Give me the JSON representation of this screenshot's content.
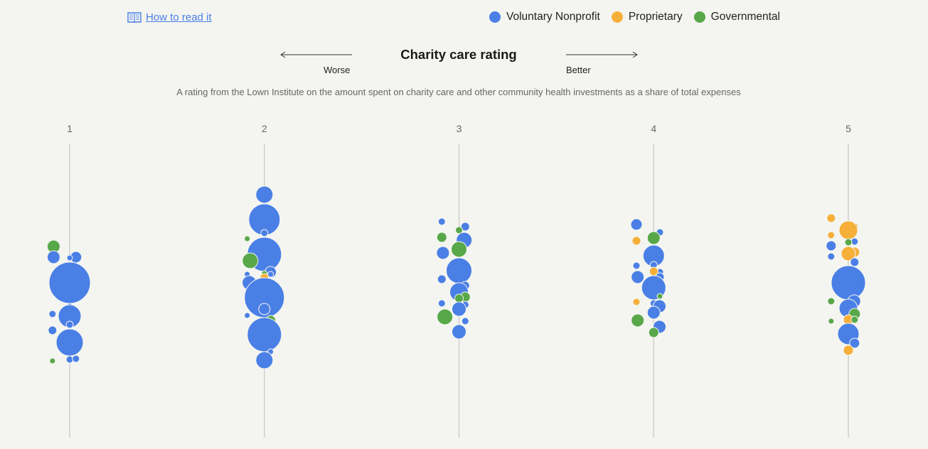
{
  "how_to_read": {
    "label": "How to read it",
    "icon": "book-icon"
  },
  "legend": [
    {
      "key": "voluntary",
      "label": "Voluntary Nonprofit",
      "color": "#4a7fe6"
    },
    {
      "key": "proprietary",
      "label": "Proprietary",
      "color": "#f6b03a"
    },
    {
      "key": "governmental",
      "label": "Governmental",
      "color": "#58a84a"
    }
  ],
  "header": {
    "title": "Charity care rating",
    "worse_label": "Worse",
    "better_label": "Better",
    "subtitle": "A rating from the Lown Institute on the amount spent on charity care and other community health investments as a share of total expenses"
  },
  "chart_data": {
    "type": "scatter",
    "title": "Charity care rating",
    "x_axis": {
      "categories": [
        "1",
        "2",
        "3",
        "4",
        "5"
      ]
    },
    "grid": true,
    "legend_position": "top-right",
    "bubbles": [
      {
        "rating": 1,
        "type": "governmental",
        "dy": -51,
        "size": 9
      },
      {
        "rating": 1,
        "type": "voluntary",
        "dy": -36,
        "size": 8
      },
      {
        "rating": 1,
        "type": "voluntary",
        "dy": -35,
        "size": 4
      },
      {
        "rating": 1,
        "type": "voluntary",
        "dy": -36,
        "size": 9
      },
      {
        "rating": 1,
        "type": "voluntary",
        "dy": 0,
        "size": 29
      },
      {
        "rating": 1,
        "type": "voluntary",
        "dy": 33,
        "size": 4
      },
      {
        "rating": 1,
        "type": "voluntary",
        "dy": 44,
        "size": 5
      },
      {
        "rating": 1,
        "type": "voluntary",
        "dy": 47,
        "size": 16
      },
      {
        "rating": 1,
        "type": "voluntary",
        "dy": 59,
        "size": 5
      },
      {
        "rating": 1,
        "type": "voluntary",
        "dy": 67,
        "size": 6
      },
      {
        "rating": 1,
        "type": "voluntary",
        "dy": 84,
        "size": 19
      },
      {
        "rating": 1,
        "type": "voluntary",
        "dy": 108,
        "size": 5
      },
      {
        "rating": 1,
        "type": "governmental",
        "dy": 110,
        "size": 4
      },
      {
        "rating": 1,
        "type": "voluntary",
        "dy": 107,
        "size": 5
      },
      {
        "rating": 2,
        "type": "voluntary",
        "dy": -124,
        "size": 12
      },
      {
        "rating": 2,
        "type": "voluntary",
        "dy": -89,
        "size": 22
      },
      {
        "rating": 2,
        "type": "voluntary",
        "dy": -70,
        "size": 5
      },
      {
        "rating": 2,
        "type": "governmental",
        "dy": -62,
        "size": 4
      },
      {
        "rating": 2,
        "type": "voluntary",
        "dy": -52,
        "size": 9
      },
      {
        "rating": 2,
        "type": "voluntary",
        "dy": -40,
        "size": 24
      },
      {
        "rating": 2,
        "type": "governmental",
        "dy": -31,
        "size": 11
      },
      {
        "rating": 2,
        "type": "voluntary",
        "dy": -15,
        "size": 8
      },
      {
        "rating": 2,
        "type": "governmental",
        "dy": -13,
        "size": 4
      },
      {
        "rating": 2,
        "type": "voluntary",
        "dy": -12,
        "size": 4
      },
      {
        "rating": 2,
        "type": "voluntary",
        "dy": -12,
        "size": 4
      },
      {
        "rating": 2,
        "type": "proprietary",
        "dy": -7,
        "size": 6
      },
      {
        "rating": 2,
        "type": "voluntary",
        "dy": 0,
        "size": 10
      },
      {
        "rating": 2,
        "type": "voluntary",
        "dy": 21,
        "size": 28
      },
      {
        "rating": 2,
        "type": "voluntary",
        "dy": 37,
        "size": 8
      },
      {
        "rating": 2,
        "type": "voluntary",
        "dy": 46,
        "size": 4
      },
      {
        "rating": 2,
        "type": "governmental",
        "dy": 53,
        "size": 7
      },
      {
        "rating": 2,
        "type": "governmental",
        "dy": 68,
        "size": 11
      },
      {
        "rating": 2,
        "type": "voluntary",
        "dy": 73,
        "size": 24
      },
      {
        "rating": 2,
        "type": "voluntary",
        "dy": 97,
        "size": 4
      },
      {
        "rating": 2,
        "type": "voluntary",
        "dy": 109,
        "size": 12
      },
      {
        "rating": 3,
        "type": "voluntary",
        "dy": -86,
        "size": 5
      },
      {
        "rating": 3,
        "type": "voluntary",
        "dy": -79,
        "size": 6
      },
      {
        "rating": 3,
        "type": "governmental",
        "dy": -74,
        "size": 5
      },
      {
        "rating": 3,
        "type": "governmental",
        "dy": -64,
        "size": 7
      },
      {
        "rating": 3,
        "type": "voluntary",
        "dy": -60,
        "size": 11
      },
      {
        "rating": 3,
        "type": "governmental",
        "dy": -47,
        "size": 11
      },
      {
        "rating": 3,
        "type": "voluntary",
        "dy": -42,
        "size": 9
      },
      {
        "rating": 3,
        "type": "voluntary",
        "dy": -28,
        "size": 4
      },
      {
        "rating": 3,
        "type": "voluntary",
        "dy": -17,
        "size": 18
      },
      {
        "rating": 3,
        "type": "voluntary",
        "dy": -5,
        "size": 6
      },
      {
        "rating": 3,
        "type": "voluntary",
        "dy": 4,
        "size": 6
      },
      {
        "rating": 3,
        "type": "voluntary",
        "dy": 7,
        "size": 6
      },
      {
        "rating": 3,
        "type": "voluntary",
        "dy": 13,
        "size": 13
      },
      {
        "rating": 3,
        "type": "governmental",
        "dy": 20,
        "size": 7
      },
      {
        "rating": 3,
        "type": "governmental",
        "dy": 22,
        "size": 6
      },
      {
        "rating": 3,
        "type": "voluntary",
        "dy": 29,
        "size": 5
      },
      {
        "rating": 3,
        "type": "voluntary",
        "dy": 31,
        "size": 5
      },
      {
        "rating": 3,
        "type": "voluntary",
        "dy": 37,
        "size": 10
      },
      {
        "rating": 3,
        "type": "governmental",
        "dy": 48,
        "size": 11
      },
      {
        "rating": 3,
        "type": "voluntary",
        "dy": 54,
        "size": 5
      },
      {
        "rating": 3,
        "type": "voluntary",
        "dy": 69,
        "size": 10
      },
      {
        "rating": 4,
        "type": "voluntary",
        "dy": -82,
        "size": 8
      },
      {
        "rating": 4,
        "type": "voluntary",
        "dy": -71,
        "size": 5
      },
      {
        "rating": 4,
        "type": "governmental",
        "dy": -63,
        "size": 9
      },
      {
        "rating": 4,
        "type": "proprietary",
        "dy": -59,
        "size": 6
      },
      {
        "rating": 4,
        "type": "voluntary",
        "dy": -38,
        "size": 15
      },
      {
        "rating": 4,
        "type": "voluntary",
        "dy": -25,
        "size": 5
      },
      {
        "rating": 4,
        "type": "voluntary",
        "dy": -24,
        "size": 5
      },
      {
        "rating": 4,
        "type": "voluntary",
        "dy": -15,
        "size": 5
      },
      {
        "rating": 4,
        "type": "proprietary",
        "dy": -16,
        "size": 6
      },
      {
        "rating": 4,
        "type": "voluntary",
        "dy": -8,
        "size": 9
      },
      {
        "rating": 4,
        "type": "voluntary",
        "dy": -8,
        "size": 6
      },
      {
        "rating": 4,
        "type": "voluntary",
        "dy": 6,
        "size": 5
      },
      {
        "rating": 4,
        "type": "voluntary",
        "dy": 7,
        "size": 17
      },
      {
        "rating": 4,
        "type": "governmental",
        "dy": 19,
        "size": 4
      },
      {
        "rating": 4,
        "type": "voluntary",
        "dy": 29,
        "size": 5
      },
      {
        "rating": 4,
        "type": "proprietary",
        "dy": 27,
        "size": 5
      },
      {
        "rating": 4,
        "type": "voluntary",
        "dy": 33,
        "size": 9
      },
      {
        "rating": 4,
        "type": "voluntary",
        "dy": 42,
        "size": 9
      },
      {
        "rating": 4,
        "type": "governmental",
        "dy": 53,
        "size": 9
      },
      {
        "rating": 4,
        "type": "voluntary",
        "dy": 62,
        "size": 9
      },
      {
        "rating": 4,
        "type": "governmental",
        "dy": 70,
        "size": 7
      },
      {
        "rating": 5,
        "type": "proprietary",
        "dy": -91,
        "size": 6
      },
      {
        "rating": 5,
        "type": "proprietary",
        "dy": -79,
        "size": 5
      },
      {
        "rating": 5,
        "type": "proprietary",
        "dy": -74,
        "size": 13
      },
      {
        "rating": 5,
        "type": "proprietary",
        "dy": -67,
        "size": 5
      },
      {
        "rating": 5,
        "type": "voluntary",
        "dy": -58,
        "size": 5
      },
      {
        "rating": 5,
        "type": "governmental",
        "dy": -57,
        "size": 5
      },
      {
        "rating": 5,
        "type": "voluntary",
        "dy": -52,
        "size": 7
      },
      {
        "rating": 5,
        "type": "proprietary",
        "dy": -43,
        "size": 7
      },
      {
        "rating": 5,
        "type": "proprietary",
        "dy": -41,
        "size": 10
      },
      {
        "rating": 5,
        "type": "voluntary",
        "dy": -37,
        "size": 5
      },
      {
        "rating": 5,
        "type": "voluntary",
        "dy": -29,
        "size": 6
      },
      {
        "rating": 5,
        "type": "voluntary",
        "dy": 0,
        "size": 24
      },
      {
        "rating": 5,
        "type": "governmental",
        "dy": 26,
        "size": 5
      },
      {
        "rating": 5,
        "type": "voluntary",
        "dy": 26,
        "size": 9
      },
      {
        "rating": 5,
        "type": "voluntary",
        "dy": 35,
        "size": 8
      },
      {
        "rating": 5,
        "type": "voluntary",
        "dy": 36,
        "size": 13
      },
      {
        "rating": 5,
        "type": "governmental",
        "dy": 44,
        "size": 8
      },
      {
        "rating": 5,
        "type": "proprietary",
        "dy": 52,
        "size": 7
      },
      {
        "rating": 5,
        "type": "governmental",
        "dy": 54,
        "size": 4
      },
      {
        "rating": 5,
        "type": "governmental",
        "dy": 52,
        "size": 5
      },
      {
        "rating": 5,
        "type": "governmental",
        "dy": 67,
        "size": 6
      },
      {
        "rating": 5,
        "type": "voluntary",
        "dy": 72,
        "size": 15
      },
      {
        "rating": 5,
        "type": "voluntary",
        "dy": 85,
        "size": 7
      },
      {
        "rating": 5,
        "type": "proprietary",
        "dy": 95,
        "size": 7
      }
    ]
  }
}
